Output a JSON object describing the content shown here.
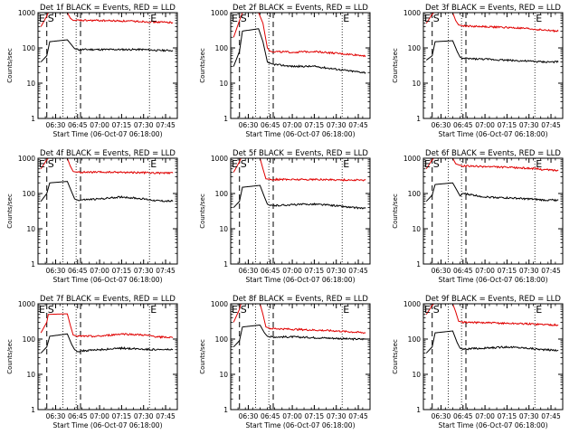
{
  "chart_data": [
    {
      "type": "line",
      "title": "Det 1f BLACK = Events, RED = LLD",
      "xlabel": "Start Time (06-Oct-07 06:18:00)",
      "ylabel": "Counts/sec",
      "x_ticks": [
        "06:30",
        "06:45",
        "07:00",
        "07:15",
        "07:30",
        "07:45"
      ],
      "y_ticks": [
        "1",
        "10",
        "100",
        "1000"
      ],
      "y_scale": "log",
      "ylim": [
        1,
        1000
      ],
      "markers": [
        {
          "label": "E",
          "at": "06:18"
        },
        {
          "label": "S",
          "at": "06:24"
        },
        {
          "label": "E",
          "at": "07:34"
        }
      ],
      "series": [
        {
          "color": "#000000",
          "x": [
            "06:20",
            "06:24",
            "06:26",
            "06:38",
            "06:41",
            "06:43",
            "06:45",
            "07:00",
            "07:15",
            "07:30",
            "07:40",
            "07:50"
          ],
          "values": [
            40,
            60,
            150,
            170,
            120,
            95,
            90,
            90,
            90,
            90,
            85,
            85
          ]
        },
        {
          "color": "#e00000",
          "x": [
            "06:20",
            "06:24",
            "06:25",
            "06:38",
            "06:40",
            "06:42",
            "06:45",
            "07:00",
            "07:15",
            "07:30",
            "07:40",
            "07:50"
          ],
          "values": [
            400,
            800,
            1000,
            1000,
            700,
            600,
            600,
            600,
            580,
            560,
            540,
            530
          ]
        }
      ]
    },
    {
      "type": "line",
      "title": "Det 2f BLACK = Events, RED = LLD",
      "xlabel": "Start Time (06-Oct-07 06:18:00)",
      "ylabel": "Counts/sec",
      "x_ticks": [
        "06:30",
        "06:45",
        "07:00",
        "07:15",
        "07:30",
        "07:45"
      ],
      "y_ticks": [
        "1",
        "10",
        "100",
        "1000"
      ],
      "y_scale": "log",
      "ylim": [
        1,
        1000
      ],
      "markers": [
        {
          "label": "E",
          "at": "06:18"
        },
        {
          "label": "S",
          "at": "06:24"
        },
        {
          "label": "E",
          "at": "07:34"
        }
      ],
      "series": [
        {
          "color": "#000000",
          "x": [
            "06:20",
            "06:24",
            "06:26",
            "06:37",
            "06:40",
            "06:43",
            "06:45",
            "07:00",
            "07:15",
            "07:30",
            "07:40",
            "07:50"
          ],
          "values": [
            30,
            80,
            300,
            350,
            150,
            40,
            35,
            30,
            30,
            25,
            22,
            20
          ]
        },
        {
          "color": "#e00000",
          "x": [
            "06:20",
            "06:24",
            "06:26",
            "06:37",
            "06:40",
            "06:43",
            "06:45",
            "07:00",
            "07:15",
            "07:30",
            "07:40",
            "07:50"
          ],
          "values": [
            200,
            600,
            1000,
            1000,
            500,
            100,
            80,
            75,
            80,
            70,
            65,
            60
          ]
        }
      ]
    },
    {
      "type": "line",
      "title": "Det 3f BLACK = Events, RED = LLD",
      "xlabel": "Start Time (06-Oct-07 06:18:00)",
      "ylabel": "Counts/sec",
      "x_ticks": [
        "06:30",
        "06:45",
        "07:00",
        "07:15",
        "07:30",
        "07:45"
      ],
      "y_ticks": [
        "1",
        "10",
        "100",
        "1000"
      ],
      "y_scale": "log",
      "ylim": [
        1,
        1000
      ],
      "markers": [
        {
          "label": "E",
          "at": "06:18"
        },
        {
          "label": "S",
          "at": "06:24"
        },
        {
          "label": "E",
          "at": "07:34"
        }
      ],
      "series": [
        {
          "color": "#000000",
          "x": [
            "06:20",
            "06:24",
            "06:26",
            "06:38",
            "06:41",
            "06:43",
            "06:45",
            "07:00",
            "07:15",
            "07:30",
            "07:40",
            "07:50"
          ],
          "values": [
            45,
            60,
            150,
            160,
            80,
            55,
            50,
            48,
            45,
            42,
            40,
            40
          ]
        },
        {
          "color": "#e00000",
          "x": [
            "06:20",
            "06:24",
            "06:25",
            "06:38",
            "06:40",
            "06:42",
            "06:45",
            "07:00",
            "07:15",
            "07:30",
            "07:40",
            "07:50"
          ],
          "values": [
            500,
            900,
            1000,
            1000,
            600,
            450,
            420,
            400,
            380,
            350,
            320,
            300
          ]
        }
      ]
    },
    {
      "type": "line",
      "title": "Det 4f BLACK = Events, RED = LLD",
      "xlabel": "Start Time (06-Oct-07 06:18:00)",
      "ylabel": "Counts/sec",
      "x_ticks": [
        "06:30",
        "06:45",
        "07:00",
        "07:15",
        "07:30",
        "07:45"
      ],
      "y_ticks": [
        "1",
        "10",
        "100",
        "1000"
      ],
      "y_scale": "log",
      "ylim": [
        1,
        1000
      ],
      "markers": [
        {
          "label": "E",
          "at": "06:18"
        },
        {
          "label": "S",
          "at": "06:24"
        },
        {
          "label": "E",
          "at": "07:34"
        }
      ],
      "series": [
        {
          "color": "#000000",
          "x": [
            "06:20",
            "06:24",
            "06:26",
            "06:38",
            "06:41",
            "06:43",
            "06:45",
            "07:00",
            "07:15",
            "07:30",
            "07:40",
            "07:50"
          ],
          "values": [
            60,
            100,
            200,
            220,
            110,
            70,
            65,
            70,
            80,
            70,
            62,
            60
          ]
        },
        {
          "color": "#e00000",
          "x": [
            "06:20",
            "06:24",
            "06:25",
            "06:38",
            "06:40",
            "06:42",
            "06:45",
            "07:00",
            "07:15",
            "07:30",
            "07:40",
            "07:50"
          ],
          "values": [
            500,
            900,
            1000,
            1000,
            600,
            420,
            400,
            400,
            400,
            390,
            380,
            380
          ]
        }
      ]
    },
    {
      "type": "line",
      "title": "Det 5f BLACK = Events, RED = LLD",
      "xlabel": "Start Time (06-Oct-07 06:18:00)",
      "ylabel": "Counts/sec",
      "x_ticks": [
        "06:30",
        "06:45",
        "07:00",
        "07:15",
        "07:30",
        "07:45"
      ],
      "y_ticks": [
        "1",
        "10",
        "100",
        "1000"
      ],
      "y_scale": "log",
      "ylim": [
        1,
        1000
      ],
      "markers": [
        {
          "label": "E",
          "at": "06:18"
        },
        {
          "label": "S",
          "at": "06:24"
        },
        {
          "label": "E",
          "at": "07:34"
        }
      ],
      "series": [
        {
          "color": "#000000",
          "x": [
            "06:20",
            "06:24",
            "06:26",
            "06:38",
            "06:41",
            "06:43",
            "06:45",
            "07:00",
            "07:15",
            "07:30",
            "07:40",
            "07:50"
          ],
          "values": [
            40,
            60,
            150,
            170,
            80,
            50,
            45,
            48,
            50,
            45,
            40,
            38
          ]
        },
        {
          "color": "#e00000",
          "x": [
            "06:20",
            "06:24",
            "06:25",
            "06:38",
            "06:40",
            "06:42",
            "06:45",
            "07:00",
            "07:15",
            "07:30",
            "07:40",
            "07:50"
          ],
          "values": [
            400,
            800,
            1000,
            1000,
            500,
            260,
            250,
            250,
            250,
            245,
            240,
            240
          ]
        }
      ]
    },
    {
      "type": "line",
      "title": "Det 6f BLACK = Events, RED = LLD",
      "xlabel": "Start Time (06-Oct-07 06:18:00)",
      "ylabel": "Counts/sec",
      "x_ticks": [
        "06:30",
        "06:45",
        "07:00",
        "07:15",
        "07:30",
        "07:45"
      ],
      "y_ticks": [
        "1",
        "10",
        "100",
        "1000"
      ],
      "y_scale": "log",
      "ylim": [
        1,
        1000
      ],
      "markers": [
        {
          "label": "E",
          "at": "06:18"
        },
        {
          "label": "S",
          "at": "06:24"
        },
        {
          "label": "E",
          "at": "07:34"
        }
      ],
      "series": [
        {
          "color": "#000000",
          "x": [
            "06:20",
            "06:24",
            "06:26",
            "06:38",
            "06:41",
            "06:43",
            "06:45",
            "07:00",
            "07:15",
            "07:30",
            "07:40",
            "07:50"
          ],
          "values": [
            60,
            90,
            180,
            200,
            120,
            85,
            100,
            80,
            75,
            70,
            65,
            65
          ]
        },
        {
          "color": "#e00000",
          "x": [
            "06:20",
            "06:24",
            "06:25",
            "06:38",
            "06:40",
            "06:42",
            "06:45",
            "07:00",
            "07:15",
            "07:30",
            "07:40",
            "07:50"
          ],
          "values": [
            500,
            900,
            1000,
            1000,
            700,
            650,
            600,
            580,
            550,
            520,
            480,
            450
          ]
        }
      ]
    },
    {
      "type": "line",
      "title": "Det 7f BLACK = Events, RED = LLD",
      "xlabel": "Start Time (06-Oct-07 06:18:00)",
      "ylabel": "Counts/sec",
      "x_ticks": [
        "06:30",
        "06:45",
        "07:00",
        "07:15",
        "07:30",
        "07:45"
      ],
      "y_ticks": [
        "1",
        "10",
        "100",
        "1000"
      ],
      "y_scale": "log",
      "ylim": [
        1,
        1000
      ],
      "markers": [
        {
          "label": "E",
          "at": "06:18"
        },
        {
          "label": "S",
          "at": "06:24"
        },
        {
          "label": "E",
          "at": "07:34"
        }
      ],
      "series": [
        {
          "color": "#000000",
          "x": [
            "06:20",
            "06:24",
            "06:26",
            "06:38",
            "06:41",
            "06:43",
            "06:45",
            "07:00",
            "07:15",
            "07:30",
            "07:40",
            "07:50"
          ],
          "values": [
            40,
            60,
            120,
            140,
            70,
            50,
            45,
            50,
            55,
            52,
            50,
            50
          ]
        },
        {
          "color": "#e00000",
          "x": [
            "06:20",
            "06:24",
            "06:25",
            "06:38",
            "06:40",
            "06:42",
            "06:45",
            "07:00",
            "07:15",
            "07:30",
            "07:40",
            "07:50"
          ],
          "values": [
            150,
            300,
            500,
            520,
            250,
            130,
            120,
            120,
            140,
            130,
            115,
            110
          ]
        }
      ]
    },
    {
      "type": "line",
      "title": "Det 8f BLACK = Events, RED = LLD",
      "xlabel": "Start Time (06-Oct-07 06:18:00)",
      "ylabel": "Counts/sec",
      "x_ticks": [
        "06:30",
        "06:45",
        "07:00",
        "07:15",
        "07:30",
        "07:45"
      ],
      "y_ticks": [
        "1",
        "10",
        "100",
        "1000"
      ],
      "y_scale": "log",
      "ylim": [
        1,
        1000
      ],
      "markers": [
        {
          "label": "E",
          "at": "06:18"
        },
        {
          "label": "S",
          "at": "06:24"
        },
        {
          "label": "E",
          "at": "07:34"
        }
      ],
      "series": [
        {
          "color": "#000000",
          "x": [
            "06:20",
            "06:24",
            "06:26",
            "06:38",
            "06:41",
            "06:43",
            "06:45",
            "07:00",
            "07:15",
            "07:30",
            "07:40",
            "07:50"
          ],
          "values": [
            60,
            90,
            220,
            250,
            150,
            120,
            115,
            115,
            110,
            105,
            100,
            100
          ]
        },
        {
          "color": "#e00000",
          "x": [
            "06:20",
            "06:24",
            "06:25",
            "06:38",
            "06:40",
            "06:42",
            "06:45",
            "07:00",
            "07:15",
            "07:30",
            "07:40",
            "07:50"
          ],
          "values": [
            300,
            700,
            1000,
            1000,
            500,
            220,
            200,
            190,
            180,
            170,
            160,
            150
          ]
        }
      ]
    },
    {
      "type": "line",
      "title": "Det 9f BLACK = Events, RED = LLD",
      "xlabel": "Start Time (06-Oct-07 06:18:00)",
      "ylabel": "Counts/sec",
      "x_ticks": [
        "06:30",
        "06:45",
        "07:00",
        "07:15",
        "07:30",
        "07:45"
      ],
      "y_ticks": [
        "1",
        "10",
        "100",
        "1000"
      ],
      "y_scale": "log",
      "ylim": [
        1,
        1000
      ],
      "markers": [
        {
          "label": "E",
          "at": "06:18"
        },
        {
          "label": "S",
          "at": "06:24"
        },
        {
          "label": "E",
          "at": "07:34"
        }
      ],
      "series": [
        {
          "color": "#000000",
          "x": [
            "06:20",
            "06:24",
            "06:26",
            "06:38",
            "06:41",
            "06:43",
            "06:45",
            "07:00",
            "07:15",
            "07:30",
            "07:40",
            "07:50"
          ],
          "values": [
            40,
            60,
            150,
            170,
            80,
            55,
            52,
            55,
            60,
            55,
            50,
            48
          ]
        },
        {
          "color": "#e00000",
          "x": [
            "06:20",
            "06:24",
            "06:25",
            "06:38",
            "06:40",
            "06:42",
            "06:45",
            "07:00",
            "07:15",
            "07:30",
            "07:40",
            "07:50"
          ],
          "values": [
            500,
            900,
            1000,
            1000,
            600,
            320,
            300,
            290,
            280,
            270,
            260,
            250
          ]
        }
      ]
    }
  ]
}
